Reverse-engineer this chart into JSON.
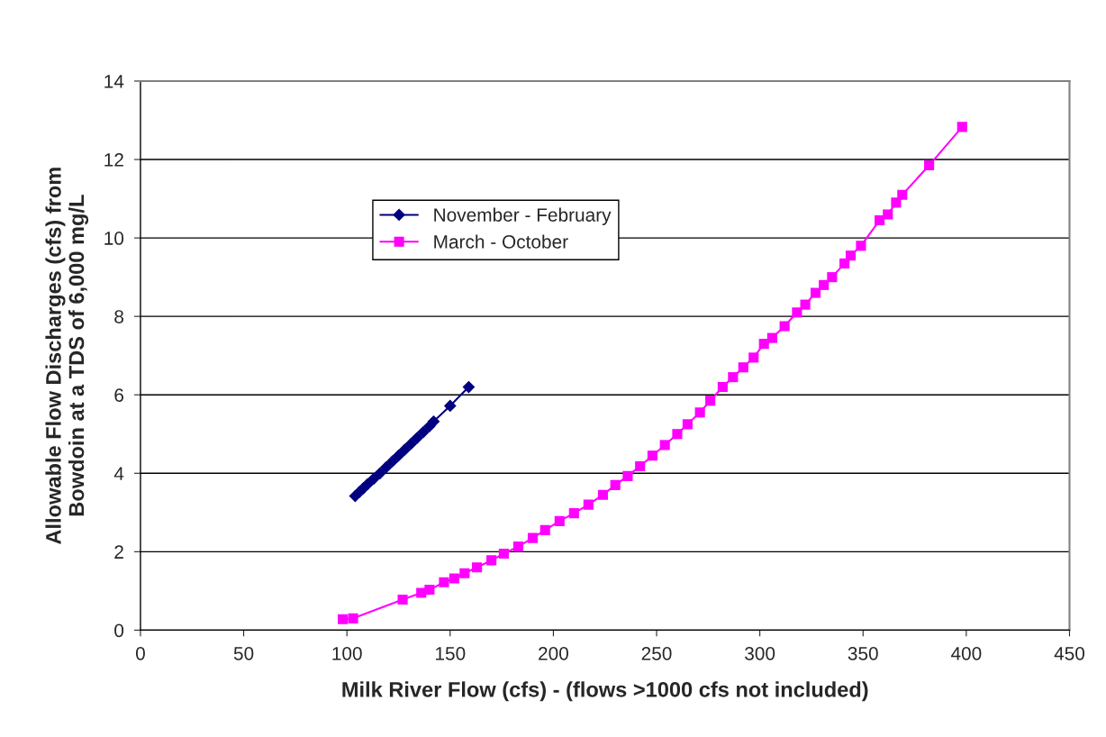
{
  "chart_data": {
    "type": "line",
    "xlabel": "Milk River Flow (cfs) - (flows >1000 cfs not included)",
    "ylabel": "Allowable Flow Discharges (cfs) from\nBowdoin at a TDS of 6,000 mg/L",
    "xlim": [
      0,
      450
    ],
    "xticks": [
      0,
      50,
      100,
      150,
      200,
      250,
      300,
      350,
      400,
      450
    ],
    "ylim": [
      0,
      14
    ],
    "yticks": [
      0,
      2,
      4,
      6,
      8,
      10,
      12,
      14
    ],
    "grid": "y",
    "legend": "top left",
    "series": [
      {
        "name": "November - February",
        "color": "#000080",
        "marker": "diamond",
        "x": [
          104,
          106,
          108,
          110,
          113,
          116,
          119,
          122,
          125,
          128,
          131,
          134,
          137,
          140,
          142,
          150,
          159
        ],
        "values": [
          3.42,
          3.52,
          3.62,
          3.72,
          3.86,
          4.0,
          4.15,
          4.3,
          4.45,
          4.6,
          4.75,
          4.9,
          5.05,
          5.2,
          5.32,
          5.72,
          6.2
        ]
      },
      {
        "name": "March - October",
        "color": "#ff00ff",
        "marker": "square",
        "x": [
          98,
          103,
          127,
          136,
          140,
          147,
          152,
          157,
          163,
          170,
          176,
          183,
          190,
          196,
          203,
          210,
          217,
          224,
          230,
          236,
          242,
          248,
          254,
          260,
          265,
          271,
          276,
          282,
          287,
          292,
          297,
          302,
          306,
          312,
          318,
          322,
          327,
          331,
          335,
          341,
          344,
          349,
          358,
          362,
          366,
          369,
          382,
          398
        ],
        "values": [
          0.28,
          0.3,
          0.78,
          0.95,
          1.03,
          1.22,
          1.32,
          1.45,
          1.6,
          1.78,
          1.95,
          2.13,
          2.35,
          2.55,
          2.78,
          2.98,
          3.2,
          3.45,
          3.7,
          3.93,
          4.18,
          4.45,
          4.72,
          5.0,
          5.25,
          5.55,
          5.85,
          6.2,
          6.45,
          6.7,
          6.95,
          7.3,
          7.45,
          7.75,
          8.1,
          8.3,
          8.6,
          8.8,
          9.0,
          9.35,
          9.55,
          9.8,
          10.45,
          10.6,
          10.9,
          11.1,
          11.85,
          12.83
        ]
      }
    ]
  }
}
